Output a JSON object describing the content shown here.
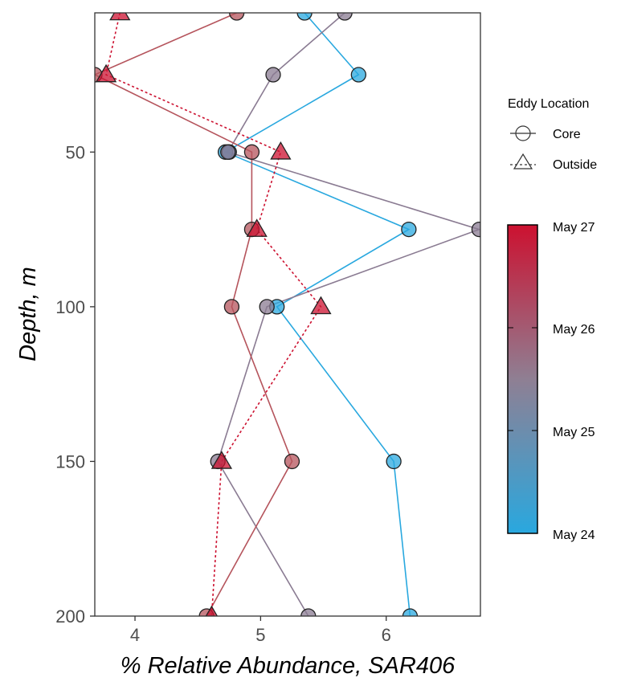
{
  "chart_data": {
    "type": "scatter",
    "xlabel": "% Relative Abundance, SAR406",
    "ylabel": "Depth, m",
    "xlim": [
      3.68,
      6.75
    ],
    "ylim": [
      200,
      5
    ],
    "x_ticks": [
      4,
      5,
      6
    ],
    "y_ticks": [
      50,
      100,
      150,
      200
    ],
    "grid": false,
    "legend": {
      "shape_title": "Eddy Location",
      "shape_entries": [
        {
          "label": "Core",
          "shape": "circle",
          "line": "solid"
        },
        {
          "label": "Outside",
          "shape": "triangle",
          "line": "dotted"
        }
      ],
      "color_scale_labels": [
        "May 27",
        "May 26",
        "May 25",
        "May 24"
      ],
      "color_low": "#29a8df",
      "color_mid": "#8f7f93",
      "color_high": "#cc1130"
    },
    "series": [
      {
        "date": "May 24",
        "location": "Core",
        "color": "#29a8df",
        "points": [
          {
            "x": 5.35,
            "y": 5
          },
          {
            "x": 5.78,
            "y": 25
          },
          {
            "x": 4.72,
            "y": 50
          },
          {
            "x": 6.18,
            "y": 75
          },
          {
            "x": 5.13,
            "y": 100
          },
          {
            "x": 6.06,
            "y": 150
          },
          {
            "x": 6.19,
            "y": 200
          }
        ]
      },
      {
        "date": "May 24.6",
        "location": "Core",
        "color": "#5f8bbd",
        "points": [
          {
            "x": 4.75,
            "y": 50
          }
        ]
      },
      {
        "date": "May 25",
        "location": "Core",
        "color": "#8a7b92",
        "points": [
          {
            "x": 5.67,
            "y": 5
          },
          {
            "x": 5.1,
            "y": 25
          },
          {
            "x": 4.74,
            "y": 50
          },
          {
            "x": 6.74,
            "y": 75
          },
          {
            "x": 5.05,
            "y": 100
          },
          {
            "x": 4.66,
            "y": 150
          },
          {
            "x": 5.38,
            "y": 200
          }
        ]
      },
      {
        "date": "May 26",
        "location": "Core",
        "color": "#b5545c",
        "points": [
          {
            "x": 4.81,
            "y": 5
          },
          {
            "x": 3.68,
            "y": 25
          },
          {
            "x": 4.93,
            "y": 50
          },
          {
            "x": 4.93,
            "y": 75
          },
          {
            "x": 4.77,
            "y": 100
          },
          {
            "x": 5.25,
            "y": 150
          },
          {
            "x": 4.57,
            "y": 200
          }
        ]
      },
      {
        "date": "May 27",
        "location": "Outside",
        "color": "#cc1130",
        "points": [
          {
            "x": 3.88,
            "y": 5
          },
          {
            "x": 3.77,
            "y": 25
          },
          {
            "x": 5.16,
            "y": 50
          },
          {
            "x": 4.97,
            "y": 75
          },
          {
            "x": 5.48,
            "y": 100
          },
          {
            "x": 4.69,
            "y": 150
          },
          {
            "x": 4.61,
            "y": 200
          }
        ]
      }
    ]
  }
}
